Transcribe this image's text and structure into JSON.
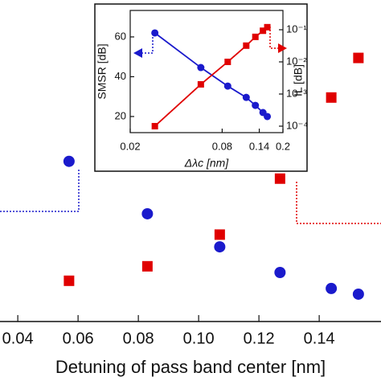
{
  "chart_data": [
    {
      "type": "scatter",
      "x_label": "Detuning of pass band center [nm]",
      "x": [
        0.057,
        0.083,
        0.107,
        0.127,
        0.144,
        0.153
      ],
      "xlim": [
        0.0341,
        0.1605
      ],
      "xticks": [
        0.04,
        0.06,
        0.08,
        {
          "value": 0.1,
          "label": "0.10"
        },
        0.12,
        0.14
      ],
      "ylim": [
        16.3,
        72.7
      ],
      "y2lim": [
        -0.019,
        0.1475
      ],
      "series": [
        {
          "color": "#1a1acc",
          "marker": "circle",
          "values": [
            44.4,
            35.2,
            29.4,
            24.9,
            22.1,
            21.1
          ]
        },
        {
          "color": "#e00000",
          "marker": "square",
          "axis": "y2",
          "values": [
            0.0021,
            0.0096,
            0.026,
            0.055,
            0.097,
            0.1175
          ]
        }
      ]
    },
    {
      "type": "scatter",
      "x_log": true,
      "y2_log": true,
      "fit_lines": true,
      "x_label": "Δλc [nm]",
      "y_label": "SMSR [dB]",
      "y2_label": "IL [dB]",
      "x": [
        0.029,
        0.058,
        0.087,
        0.115,
        0.132,
        0.148,
        0.158
      ],
      "xlim": [
        0.02,
        0.2
      ],
      "xticks": [
        0.02,
        0.08,
        0.14,
        0.2
      ],
      "ylim": [
        11.9,
        73.3
      ],
      "yticks": [
        20,
        40,
        60
      ],
      "y2lim": [
        6.3e-05,
        0.398
      ],
      "y2ticks": [
        {
          "value": 0.0001,
          "label": "10⁻⁴"
        },
        {
          "value": 0.001,
          "label": "10⁻³"
        },
        {
          "value": 0.01,
          "label": "10⁻²"
        },
        {
          "value": 0.1,
          "label": "10⁻¹"
        }
      ],
      "series": [
        {
          "color": "#1a1acc",
          "marker": "circle",
          "values": [
            62,
            44.6,
            35.3,
            29.6,
            25.6,
            22,
            20
          ]
        },
        {
          "color": "#e00000",
          "marker": "square",
          "axis": "y2",
          "values": [
            0.0001,
            0.002,
            0.01,
            0.032,
            0.06,
            0.093,
            0.12
          ]
        }
      ]
    }
  ]
}
